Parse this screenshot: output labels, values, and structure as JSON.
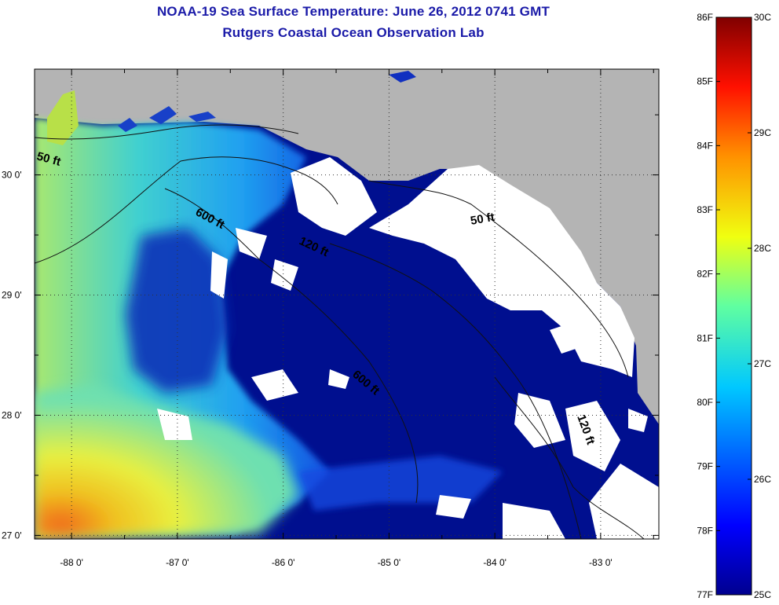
{
  "title": {
    "line1": "NOAA-19 Sea Surface Temperature:  June 26, 2012 0741 GMT",
    "line2": "Rutgers Coastal Ocean Observation Lab"
  },
  "axes": {
    "lon_labels": [
      "-88 0'",
      "-87 0'",
      "-86 0'",
      "-85 0'",
      "-84 0'",
      "-83 0'"
    ],
    "lat_labels": [
      "30 0'",
      "29 0'",
      "28 0'",
      "27 0'"
    ],
    "lon_values": [
      -88,
      -87,
      -86,
      -85,
      -84,
      -83
    ],
    "lat_values": [
      30,
      29,
      28,
      27
    ],
    "lon_range": [
      -88.35,
      -82.45
    ],
    "lat_range": [
      26.97,
      30.88
    ],
    "grid": "dotted"
  },
  "contour_labels": [
    "50 ft",
    "600 ft",
    "120 ft",
    "50 ft",
    "600 ft",
    "120 ft"
  ],
  "colorbar": {
    "fahrenheit_labels": [
      "86F",
      "85F",
      "84F",
      "83F",
      "82F",
      "81F",
      "80F",
      "79F",
      "78F",
      "77F"
    ],
    "celsius_labels": [
      "30C",
      "29C",
      "28C",
      "27C",
      "26C",
      "25C"
    ],
    "fahrenheit_range": [
      77,
      86
    ],
    "celsius_range": [
      25,
      30
    ]
  },
  "colors": {
    "title": "#1a1aa8",
    "land": "#b4b4b4",
    "cloud": "#ffffff",
    "cold_water": "#000f8f",
    "warm_water": "#f5e82a"
  }
}
